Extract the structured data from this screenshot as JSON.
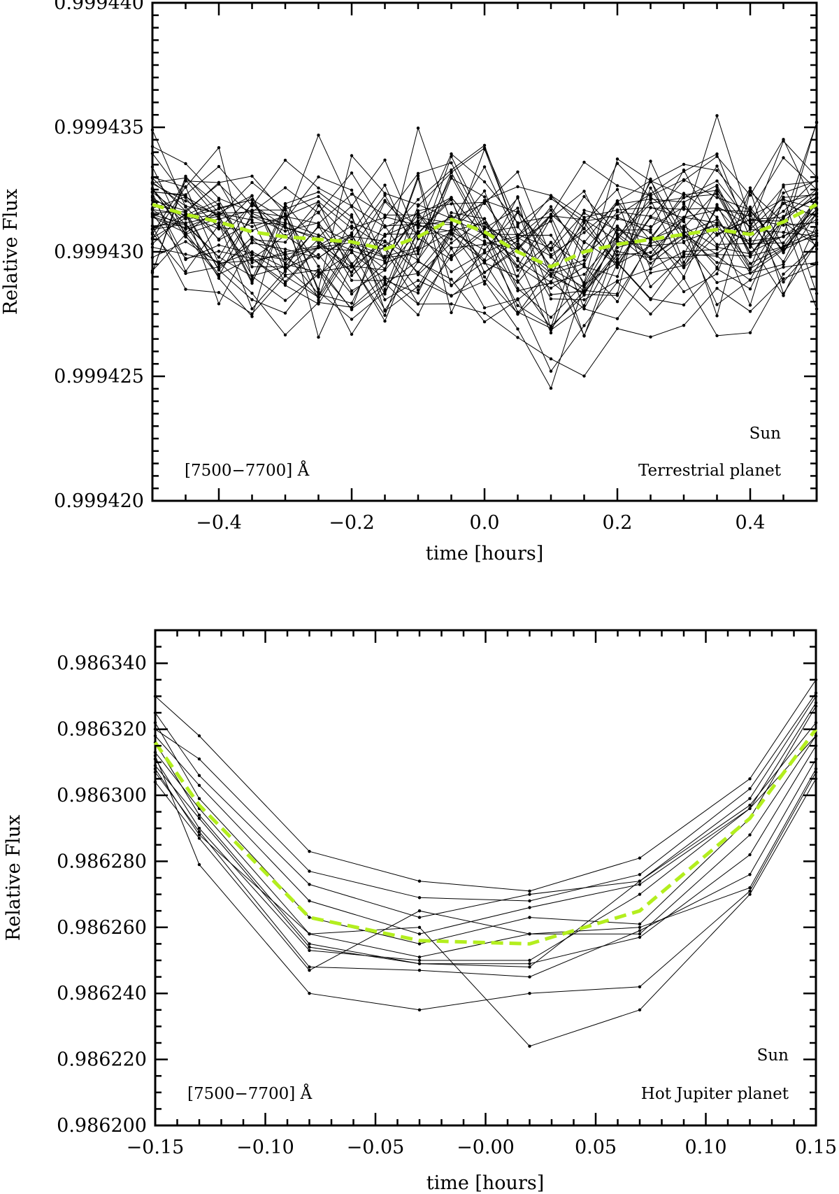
{
  "chart_data": [
    {
      "type": "line",
      "ylabel": "Relative Flux",
      "xlabel": "time [hours]",
      "xlim": [
        -0.5,
        0.5
      ],
      "ylim": [
        0.99942,
        0.99944
      ],
      "x_ticks": [
        -0.4,
        -0.2,
        0.0,
        0.2,
        0.4
      ],
      "x_tick_labels": [
        "−0.4",
        "−0.2",
        "0.0",
        "0.2",
        "0.4"
      ],
      "y_ticks": [
        0.99942,
        0.999425,
        0.99943,
        0.999435,
        0.99944
      ],
      "y_tick_labels": [
        "0.999420",
        "0.999425",
        "0.999430",
        "0.999435",
        "0.999440"
      ],
      "annotations": {
        "star": "Sun",
        "band": "[7500−7700] Å",
        "planet": "Terrestrial planet"
      },
      "colors": {
        "individual": "#000000",
        "mean": "#b3ee1e"
      },
      "x": [
        -0.5,
        -0.45,
        -0.4,
        -0.35,
        -0.3,
        -0.25,
        -0.2,
        -0.15,
        -0.1,
        -0.05,
        0.0,
        0.05,
        0.1,
        0.15,
        0.2,
        0.25,
        0.3,
        0.35,
        0.4,
        0.45,
        0.5
      ],
      "mean": [
        0.9994319,
        0.9994315,
        0.9994312,
        0.9994308,
        0.9994306,
        0.9994305,
        0.9994304,
        0.9994301,
        0.9994306,
        0.9994313,
        0.9994308,
        0.99943,
        0.9994294,
        0.99943,
        0.9994303,
        0.9994305,
        0.9994307,
        0.9994309,
        0.9994307,
        0.9994312,
        0.9994319
      ],
      "series_count": 42
    },
    {
      "type": "line",
      "ylabel": "Relative Flux",
      "xlabel": "time [hours]",
      "xlim": [
        -0.15,
        0.15
      ],
      "ylim": [
        0.9862,
        0.98635
      ],
      "x_ticks": [
        -0.15,
        -0.1,
        -0.05,
        0.0,
        0.05,
        0.1,
        0.15
      ],
      "x_tick_labels": [
        "−0.15",
        "−0.10",
        "−0.05",
        "−0.00",
        "0.05",
        "0.10",
        "0.15"
      ],
      "y_ticks": [
        0.9862,
        0.98622,
        0.98624,
        0.98626,
        0.98628,
        0.9863,
        0.98632,
        0.98634
      ],
      "y_tick_labels": [
        "0.986200",
        "0.986220",
        "0.986240",
        "0.986260",
        "0.986280",
        "0.986300",
        "0.986320",
        "0.986340"
      ],
      "annotations": {
        "star": "Sun",
        "band": "[7500−7700] Å",
        "planet": "Hot Jupiter planet"
      },
      "colors": {
        "individual": "#000000",
        "mean": "#b3ee1e"
      },
      "x": [
        -0.15,
        -0.13,
        -0.08,
        -0.03,
        0.02,
        0.07,
        0.12,
        0.15
      ],
      "mean": [
        0.986316,
        0.986297,
        0.986263,
        0.986256,
        0.986255,
        0.986265,
        0.986293,
        0.98632
      ],
      "series": [
        {
          "values": [
            0.98633,
            0.986318,
            0.986283,
            0.986274,
            0.986271,
            0.986281,
            0.986305,
            0.986335
          ]
        },
        {
          "values": [
            0.98632,
            0.986311,
            0.986277,
            0.986269,
            0.986268,
            0.986276,
            0.986302,
            0.986331
          ]
        },
        {
          "values": [
            0.986325,
            0.986306,
            0.986273,
            0.986263,
            0.98627,
            0.986274,
            0.986299,
            0.98633
          ]
        },
        {
          "values": [
            0.986318,
            0.986303,
            0.986268,
            0.986258,
            0.986266,
            0.986273,
            0.986296,
            0.986328
          ]
        },
        {
          "values": [
            0.986322,
            0.986299,
            0.986263,
            0.986255,
            0.986263,
            0.986261,
            0.986293,
            0.986327
          ]
        },
        {
          "values": [
            0.986313,
            0.986296,
            0.986258,
            0.986251,
            0.986258,
            0.986258,
            0.986288,
            0.986318
          ]
        },
        {
          "values": [
            0.986316,
            0.986294,
            0.986255,
            0.986249,
            0.986249,
            0.986257,
            0.986282,
            0.986315
          ]
        },
        {
          "values": [
            0.986309,
            0.986293,
            0.986254,
            0.986249,
            0.986248,
            0.986274,
            0.986297,
            0.986322
          ]
        },
        {
          "values": [
            0.986311,
            0.98629,
            0.986253,
            0.98625,
            0.98625,
            0.98627,
            0.986296,
            0.986318
          ]
        },
        {
          "values": [
            0.986307,
            0.986289,
            0.986248,
            0.986247,
            0.986245,
            0.986259,
            0.986276,
            0.986311
          ]
        },
        {
          "values": [
            0.986304,
            0.986287,
            0.986247,
            0.986265,
            0.986258,
            0.98626,
            0.986272,
            0.986308
          ]
        },
        {
          "values": [
            0.986312,
            0.986279,
            0.98624,
            0.986235,
            0.98624,
            0.986242,
            0.986271,
            0.986307
          ]
        },
        {
          "values": [
            0.986308,
            0.986288,
            0.986258,
            0.98626,
            0.986224,
            0.986235,
            0.98627,
            0.986305
          ]
        }
      ]
    }
  ]
}
